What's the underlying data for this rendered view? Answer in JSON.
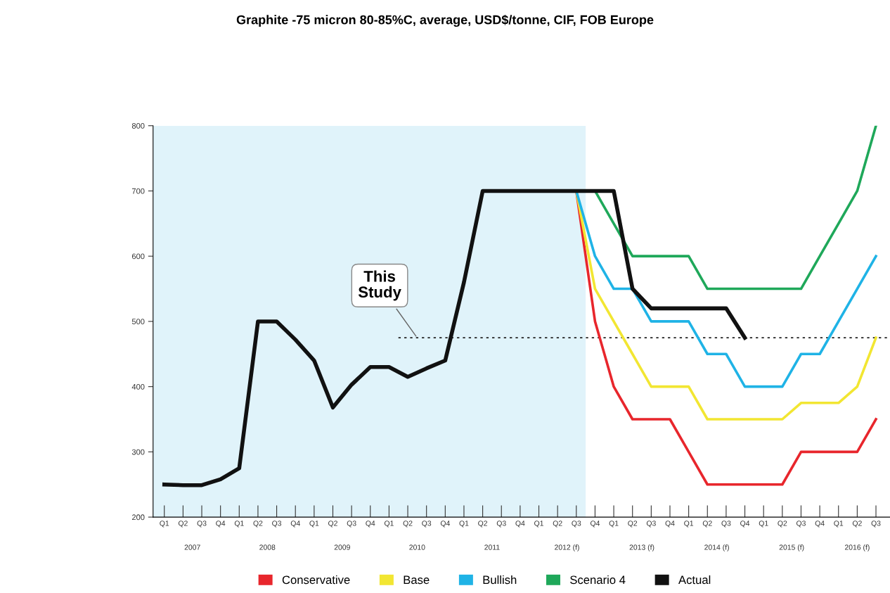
{
  "chart_data": {
    "type": "line",
    "title": "Graphite -75 micron 80-85%C, average, USD$/tonne, CIF, FOB Europe",
    "categories": [
      "Q1",
      "Q2",
      "Q3",
      "Q4",
      "Q1",
      "Q2",
      "Q3",
      "Q4",
      "Q1",
      "Q2",
      "Q3",
      "Q4",
      "Q1",
      "Q2",
      "Q3",
      "Q4",
      "Q1",
      "Q2",
      "Q3",
      "Q4",
      "Q1",
      "Q2",
      "Q3",
      "Q4",
      "Q1",
      "Q2",
      "Q3",
      "Q4",
      "Q1",
      "Q2",
      "Q3",
      "Q4",
      "Q1",
      "Q2",
      "Q3",
      "Q4",
      "Q1",
      "Q2",
      "Q3"
    ],
    "series": [
      {
        "name": "Conservative",
        "color": "#e8262c",
        "values": [
          null,
          null,
          null,
          null,
          null,
          null,
          null,
          null,
          null,
          null,
          null,
          null,
          null,
          null,
          null,
          null,
          null,
          null,
          null,
          null,
          null,
          null,
          700,
          500,
          400,
          350,
          350,
          350,
          300,
          250,
          250,
          250,
          250,
          250,
          300,
          300,
          300,
          300,
          350
        ]
      },
      {
        "name": "Base",
        "color": "#f2e632",
        "values": [
          null,
          null,
          null,
          null,
          null,
          null,
          null,
          null,
          null,
          null,
          null,
          null,
          null,
          null,
          null,
          null,
          null,
          null,
          null,
          null,
          null,
          null,
          700,
          550,
          500,
          450,
          400,
          400,
          400,
          350,
          350,
          350,
          350,
          350,
          375,
          375,
          375,
          400,
          475
        ]
      },
      {
        "name": "Bullish",
        "color": "#1fb3e6",
        "values": [
          null,
          null,
          null,
          null,
          null,
          null,
          null,
          null,
          null,
          null,
          null,
          null,
          null,
          null,
          null,
          null,
          null,
          null,
          null,
          null,
          null,
          null,
          700,
          600,
          550,
          550,
          500,
          500,
          500,
          450,
          450,
          400,
          400,
          400,
          450,
          450,
          500,
          550,
          600
        ]
      },
      {
        "name": "Scenario 4",
        "color": "#1fa85a",
        "values": [
          null,
          null,
          null,
          null,
          null,
          null,
          null,
          null,
          null,
          null,
          null,
          null,
          null,
          null,
          null,
          null,
          null,
          null,
          null,
          null,
          null,
          null,
          700,
          700,
          650,
          600,
          600,
          600,
          600,
          550,
          550,
          550,
          550,
          550,
          550,
          600,
          650,
          700,
          800
        ]
      },
      {
        "name": "Actual",
        "color": "#111111",
        "values": [
          250,
          249,
          249,
          258,
          275,
          500,
          500,
          472,
          440,
          368,
          403,
          430,
          430,
          415,
          428,
          440,
          560,
          700,
          700,
          700,
          700,
          700,
          700,
          700,
          700,
          550,
          520,
          520,
          520,
          520,
          520,
          475,
          null,
          null,
          null,
          null,
          null,
          null,
          null
        ]
      }
    ],
    "ylim": [
      200,
      800
    ],
    "yticks": [
      200,
      300,
      400,
      500,
      600,
      700,
      800
    ],
    "grid": false,
    "legend": "bottom",
    "ref_lines": [
      {
        "axis": "y",
        "value": 475,
        "line_style": "dotted",
        "color": "#222222",
        "label": "This\nStudy"
      }
    ],
    "annotations": [
      "2007",
      "2008",
      "2009",
      "2010",
      "2011",
      "2012 (f)",
      "2013 (f)",
      "2014 (f)",
      "2015 (f)",
      "2016 (f)"
    ]
  }
}
